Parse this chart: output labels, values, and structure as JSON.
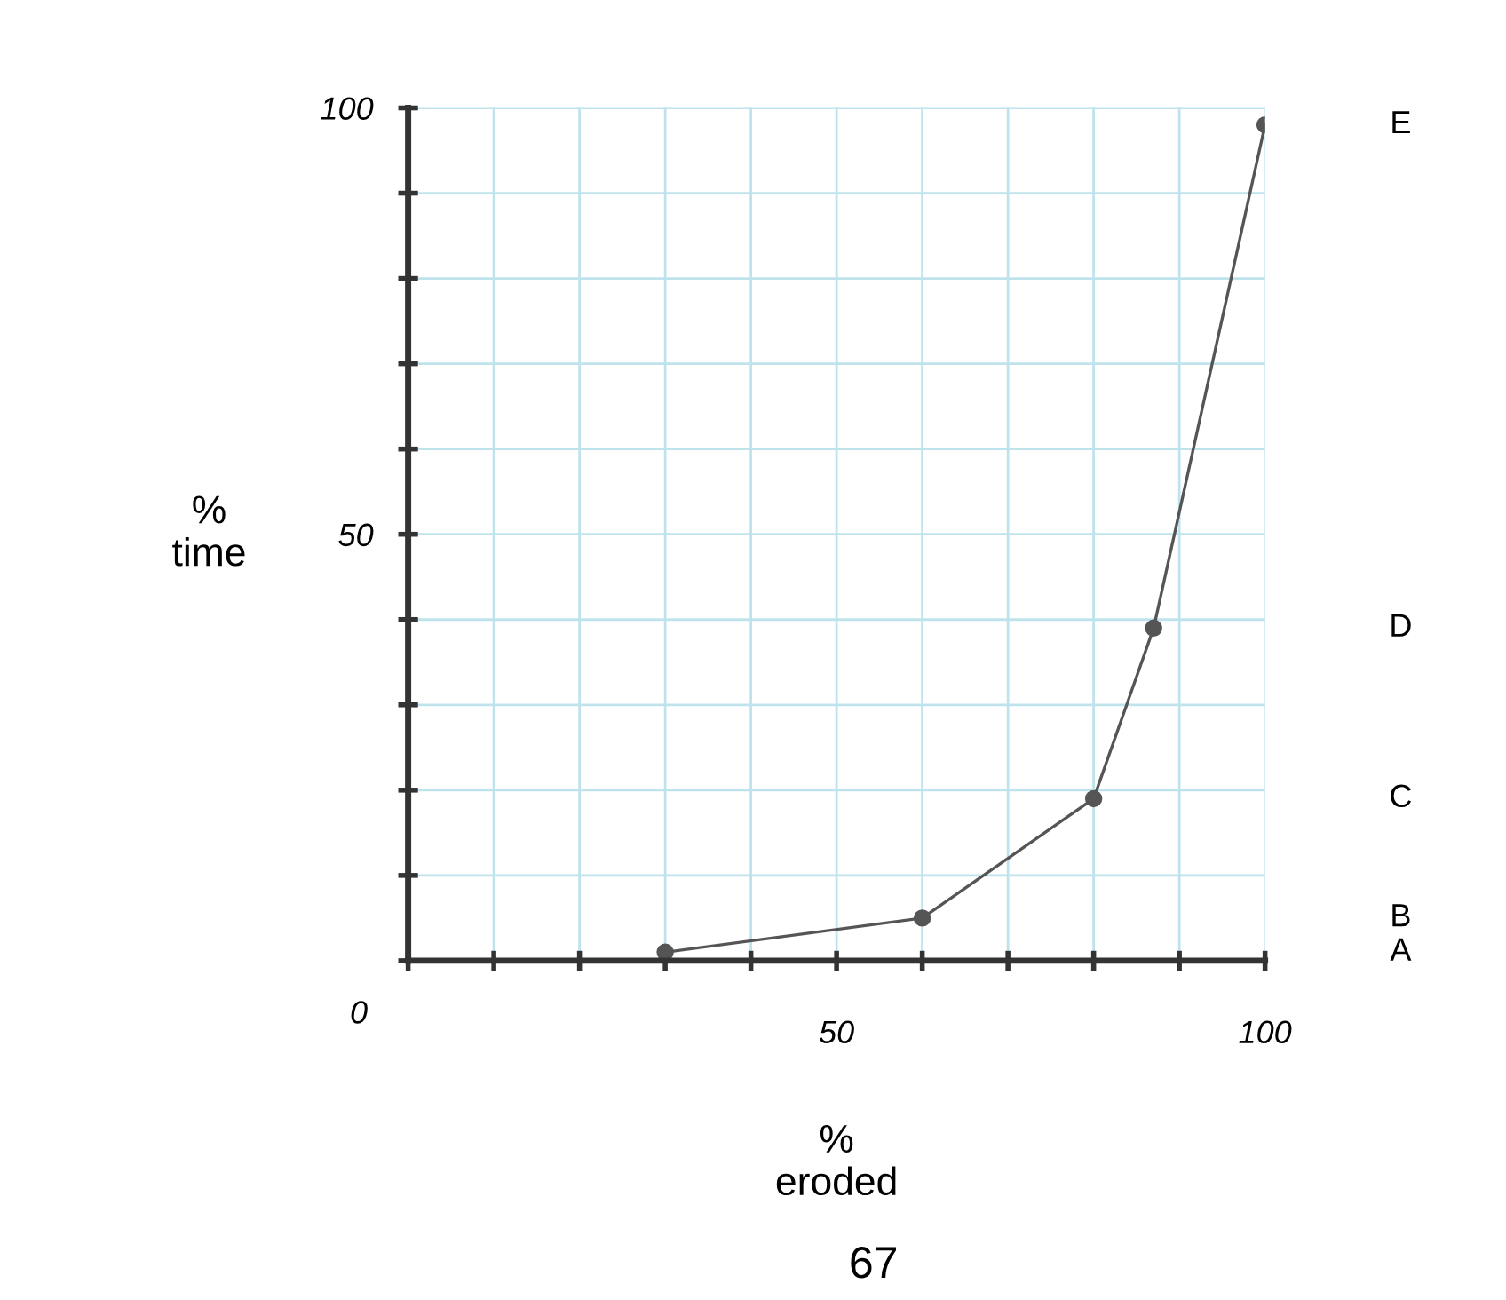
{
  "chart_data": {
    "type": "line",
    "xlabel": "%\neroded",
    "ylabel": "%\ntime",
    "x": [
      30,
      60,
      80,
      87,
      100
    ],
    "series": [
      {
        "color": "#555555",
        "values": [
          1,
          5,
          19,
          39,
          98
        ]
      }
    ],
    "xlim": [
      0,
      100
    ],
    "ylim": [
      0,
      100
    ],
    "xticks": [
      {
        "value": 0,
        "label": null
      },
      {
        "value": 10,
        "label": null
      },
      {
        "value": 20,
        "label": null
      },
      {
        "value": 30,
        "label": null
      },
      {
        "value": 40,
        "label": null
      },
      50,
      {
        "value": 60,
        "label": null
      },
      {
        "value": 70,
        "label": null
      },
      {
        "value": 80,
        "label": null
      },
      {
        "value": 90,
        "label": null
      },
      100
    ],
    "yticks": [
      {
        "value": 0,
        "label": null
      },
      {
        "value": 10,
        "label": null
      },
      {
        "value": 20,
        "label": null
      },
      {
        "value": 30,
        "label": null
      },
      {
        "value": 40,
        "label": null
      },
      50,
      {
        "value": 60,
        "label": null
      },
      {
        "value": 70,
        "label": null
      },
      {
        "value": 80,
        "label": null
      },
      {
        "value": 90,
        "label": null
      },
      100
    ],
    "grid": true,
    "marker": "circle",
    "line_style": "solid",
    "annotations": [
      "0",
      "A",
      "B",
      "C",
      "D",
      "E",
      "67"
    ]
  }
}
